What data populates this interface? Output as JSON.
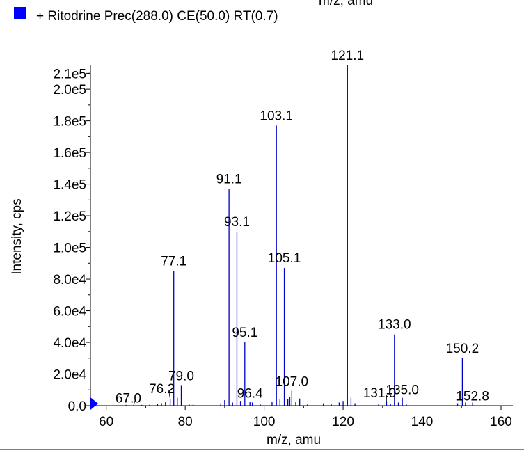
{
  "chart_data": {
    "type": "bar",
    "header_fragment": "m/z, amu",
    "legend": {
      "label": "+ Ritodrine Prec(288.0) CE(50.0) RT(0.7)",
      "color": "#0000ff",
      "position": "top-left"
    },
    "xlabel": "m/z, amu",
    "ylabel": "Intensity, cps",
    "xlim": [
      56,
      163
    ],
    "ylim": [
      0,
      215000
    ],
    "xticks": [
      60,
      80,
      100,
      120,
      140,
      160
    ],
    "xtick_labels": [
      "60",
      "80",
      "100",
      "120",
      "140",
      "160"
    ],
    "yticks": [
      0,
      20000,
      40000,
      60000,
      80000,
      100000,
      120000,
      140000,
      160000,
      180000,
      200000,
      210000
    ],
    "ytick_labels": [
      "0.0",
      "2.0e4",
      "4.0e4",
      "6.0e4",
      "8.0e4",
      "1.0e5",
      "1.2e5",
      "1.4e5",
      "1.6e5",
      "1.8e5",
      "2.0e5",
      "2.1e5"
    ],
    "grid": false,
    "series": [
      {
        "color": "#0000c8",
        "x": [
          65.0,
          67.0,
          69.0,
          71.0,
          73.0,
          74.0,
          75.0,
          76.2,
          77.1,
          78.0,
          79.0,
          81.0,
          82.0,
          89.0,
          90.0,
          91.1,
          92.0,
          93.1,
          94.0,
          95.1,
          96.4,
          97.0,
          99.0,
          102.0,
          103.1,
          104.0,
          105.1,
          106.0,
          106.5,
          107.0,
          108.0,
          109.0,
          111.0,
          115.0,
          117.0,
          119.0,
          120.0,
          121.1,
          122.0,
          123.0,
          129.0,
          131.0,
          132.0,
          133.0,
          134.0,
          135.0,
          136.0,
          149.0,
          150.2,
          151.0,
          152.8
        ],
        "y": [
          500,
          700,
          500,
          600,
          900,
          1500,
          2500,
          4000,
          85000,
          5000,
          13000,
          1200,
          800,
          1500,
          3500,
          137000,
          2000,
          110000,
          3000,
          40000,
          2500,
          2000,
          1200,
          2500,
          177000,
          4000,
          87000,
          4000,
          5500,
          9500,
          2500,
          4500,
          1200,
          1500,
          1000,
          2000,
          3000,
          215000,
          5000,
          1500,
          1000,
          3000,
          1200,
          45000,
          2000,
          5000,
          1000,
          1500,
          30000,
          2000,
          2000
        ]
      }
    ],
    "annotations": [
      {
        "x": 67.0,
        "y": 700,
        "text": "67.0"
      },
      {
        "x": 76.2,
        "y": 4000,
        "text": "76.2"
      },
      {
        "x": 77.1,
        "y": 85000,
        "text": "77.1"
      },
      {
        "x": 79.0,
        "y": 13000,
        "text": "79.0"
      },
      {
        "x": 91.1,
        "y": 137000,
        "text": "91.1"
      },
      {
        "x": 93.1,
        "y": 110000,
        "text": "93.1"
      },
      {
        "x": 95.1,
        "y": 40000,
        "text": "95.1"
      },
      {
        "x": 96.4,
        "y": 2500,
        "text": "96.4"
      },
      {
        "x": 103.1,
        "y": 177000,
        "text": "103.1"
      },
      {
        "x": 105.1,
        "y": 87000,
        "text": "105.1"
      },
      {
        "x": 107.0,
        "y": 9500,
        "text": "107.0"
      },
      {
        "x": 121.1,
        "y": 215000,
        "text": "121.1"
      },
      {
        "x": 131.0,
        "y": 3000,
        "text": "131.0"
      },
      {
        "x": 133.0,
        "y": 45000,
        "text": "133.0"
      },
      {
        "x": 135.0,
        "y": 5000,
        "text": "135.0"
      },
      {
        "x": 150.2,
        "y": 30000,
        "text": "150.2"
      },
      {
        "x": 152.8,
        "y": 2000,
        "text": "152.8"
      }
    ]
  }
}
